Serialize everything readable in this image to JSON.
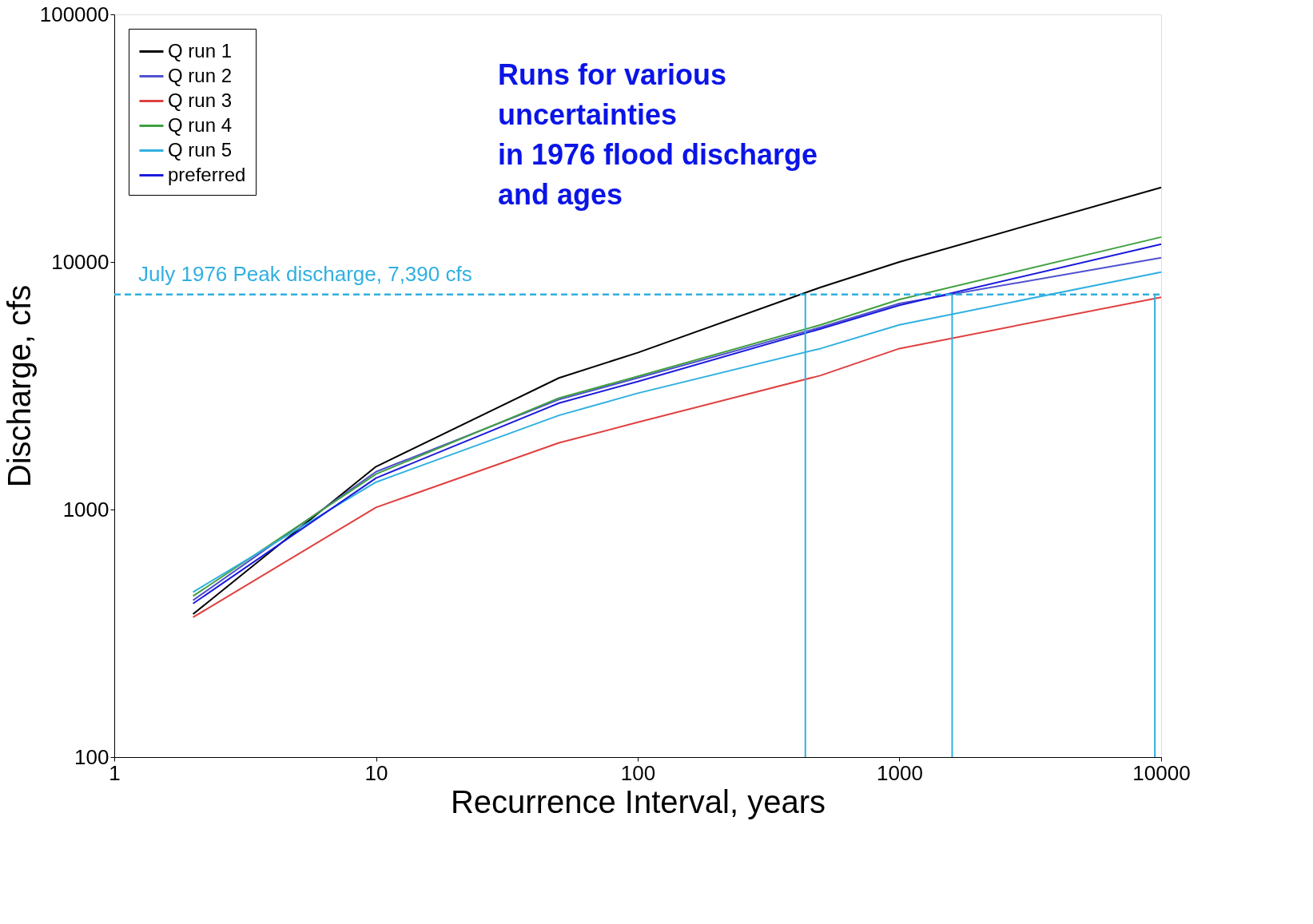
{
  "chart_data": {
    "type": "line",
    "xlabel": "Recurrence  Interval,  years",
    "ylabel": "Discharge,  cfs",
    "x": [
      2,
      10,
      50,
      100,
      500,
      1000,
      10000
    ],
    "series": [
      {
        "name": "Q run 1",
        "color": "#000000",
        "values": [
          378,
          1490,
          3400,
          4300,
          7900,
          10000,
          20000
        ]
      },
      {
        "name": "Q run 2",
        "color": "#5050d0",
        "values": [
          430,
          1420,
          2780,
          3400,
          5450,
          6800,
          10400
        ]
      },
      {
        "name": "Q run 3",
        "color": "#e04040",
        "values": [
          367,
          1020,
          1860,
          2250,
          3480,
          4470,
          7200
        ]
      },
      {
        "name": "Q run 4",
        "color": "#40a040",
        "values": [
          447,
          1390,
          2820,
          3450,
          5570,
          7050,
          12600
        ]
      },
      {
        "name": "Q run 5",
        "color": "#30b0e0",
        "values": [
          464,
          1290,
          2400,
          2950,
          4470,
          5570,
          9100
        ]
      },
      {
        "name": "preferred",
        "color": "#1a1adb",
        "values": [
          417,
          1340,
          2690,
          3290,
          5370,
          6680,
          11800
        ]
      }
    ],
    "log": "xy",
    "xlim": [
      1,
      10000
    ],
    "ylim": [
      100,
      100000
    ],
    "xticks": [
      1,
      10,
      100,
      1000,
      10000
    ],
    "yticks": [
      100,
      1000,
      10000,
      100000
    ],
    "grid": false,
    "legend": "top left",
    "line_style": "solid",
    "marker": "none",
    "ref_lines": [
      {
        "axis": "y",
        "value": 7390,
        "label": "July  1976  Peak  discharge,  7,390  cfs",
        "color": "#30b0e0",
        "line_style": "dashed"
      },
      {
        "axis": "x",
        "value": 437,
        "label": null,
        "color": "#30b0e0",
        "line_style": "solid"
      },
      {
        "axis": "x",
        "value": 1590,
        "label": null,
        "color": "#30b0e0",
        "line_style": "solid"
      },
      {
        "axis": "x",
        "value": 9460,
        "label": null,
        "color": "#30b0e0",
        "line_style": "solid"
      }
    ],
    "annotations": [
      "Runs for various\nuncertainties\nin 1976 flood discharge\nand ages"
    ]
  }
}
